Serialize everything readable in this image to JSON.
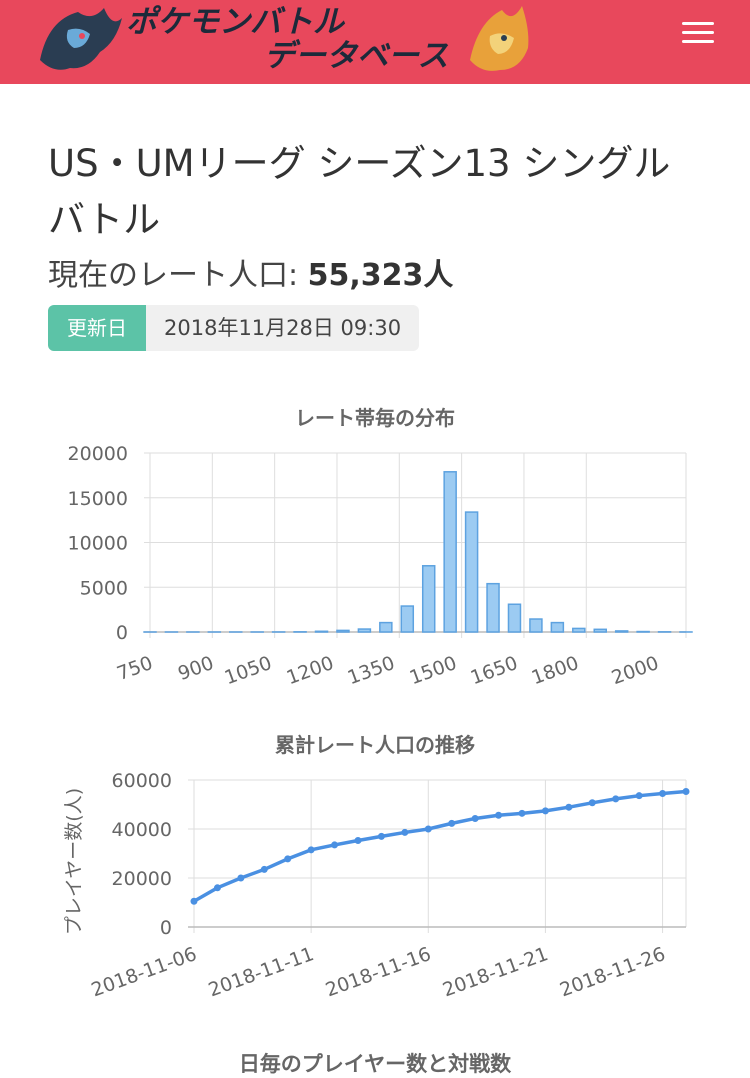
{
  "header": {
    "logo_text_1": "ポケモンバトル",
    "logo_text_2": "データベース",
    "menu_icon": "hamburger-menu-icon",
    "bg_color": "#e8485c"
  },
  "page": {
    "title": "US・UMリーグ シーズン13 シングルバトル",
    "population_label": "現在のレート人口:",
    "population_value": "55,323人",
    "updated_badge": "更新日",
    "updated_date": "2018年11月28日 09:30"
  },
  "chart_data": [
    {
      "type": "bar",
      "title": "レート帯毎の分布",
      "x": [
        750,
        800,
        850,
        900,
        950,
        1000,
        1050,
        1100,
        1150,
        1200,
        1250,
        1300,
        1350,
        1400,
        1450,
        1500,
        1550,
        1600,
        1650,
        1700,
        1750,
        1800,
        1850,
        1900,
        1950,
        2000
      ],
      "values": [
        0,
        0,
        0,
        0,
        0,
        0,
        5,
        20,
        80,
        180,
        330,
        1050,
        2900,
        7400,
        17900,
        13400,
        5400,
        3100,
        1450,
        1050,
        400,
        300,
        120,
        50,
        20,
        5
      ],
      "x_tick_labels": [
        "750",
        "900",
        "1050",
        "1200",
        "1350",
        "1500",
        "1650",
        "1800",
        "2000"
      ],
      "y_ticks": [
        "0",
        "5000",
        "10000",
        "15000",
        "20000"
      ],
      "ylim": [
        0,
        20000
      ],
      "grid": true,
      "color": "#9ccbf2",
      "border_color": "#5da2e0"
    },
    {
      "type": "line",
      "title": "累計レート人口の推移",
      "ylabel": "プレイヤー数(人)",
      "x": [
        "2018-11-06",
        "2018-11-07",
        "2018-11-08",
        "2018-11-09",
        "2018-11-10",
        "2018-11-11",
        "2018-11-12",
        "2018-11-13",
        "2018-11-14",
        "2018-11-15",
        "2018-11-16",
        "2018-11-17",
        "2018-11-18",
        "2018-11-19",
        "2018-11-20",
        "2018-11-21",
        "2018-11-22",
        "2018-11-23",
        "2018-11-24",
        "2018-11-25",
        "2018-11-26",
        "2018-11-27"
      ],
      "values": [
        10500,
        16000,
        20000,
        23500,
        27800,
        31500,
        33500,
        35300,
        37000,
        38600,
        40000,
        42300,
        44300,
        45600,
        46400,
        47400,
        48900,
        50700,
        52300,
        53600,
        54500,
        55300
      ],
      "x_tick_labels": [
        "2018-11-06",
        "2018-11-11",
        "2018-11-16",
        "2018-11-21",
        "2018-11-26"
      ],
      "y_ticks": [
        "0",
        "20000",
        "40000",
        "60000"
      ],
      "ylim": [
        0,
        60000
      ],
      "grid": true,
      "color": "#4a90e2"
    }
  ],
  "section3": {
    "title": "日毎のプレイヤー数と対戦数"
  }
}
